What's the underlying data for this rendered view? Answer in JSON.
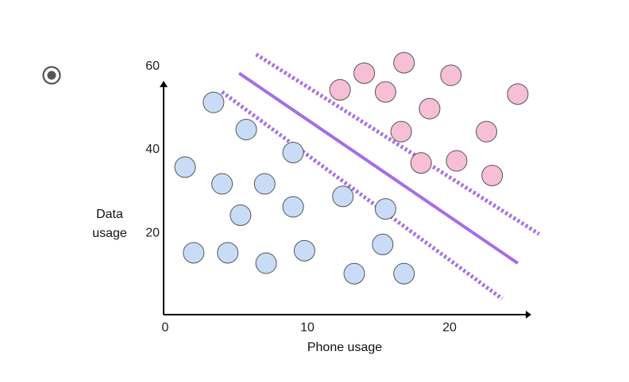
{
  "option": {
    "selected": true,
    "icon": "radio-selected-icon"
  },
  "colors": {
    "class_a_fill": "#c9dcf7",
    "class_b_fill": "#f6bfd6",
    "point_stroke": "#555555",
    "boundary": "#a66de6",
    "axis": "#000000"
  },
  "chart_data": {
    "type": "scatter",
    "xlabel": "Phone usage",
    "ylabel_lines": [
      "Data",
      "usage"
    ],
    "xticks": [
      0,
      10,
      20
    ],
    "yticks": [
      20,
      40,
      60
    ],
    "xlim": [
      0,
      25
    ],
    "ylim": [
      0,
      62
    ],
    "grid": false,
    "series": [
      {
        "class": "a",
        "points": [
          {
            "x": 3.4,
            "y": 51
          },
          {
            "x": 5.7,
            "y": 44.5
          },
          {
            "x": 9,
            "y": 39
          },
          {
            "x": 1.4,
            "y": 35.5
          },
          {
            "x": 4,
            "y": 31.5
          },
          {
            "x": 7,
            "y": 31.5
          },
          {
            "x": 9,
            "y": 26
          },
          {
            "x": 12.5,
            "y": 28.5
          },
          {
            "x": 15.5,
            "y": 25.5
          },
          {
            "x": 5.3,
            "y": 24
          },
          {
            "x": 2,
            "y": 15
          },
          {
            "x": 4.4,
            "y": 15
          },
          {
            "x": 7.1,
            "y": 12.5
          },
          {
            "x": 9.8,
            "y": 15.5
          },
          {
            "x": 15.3,
            "y": 17
          },
          {
            "x": 13.3,
            "y": 10
          },
          {
            "x": 16.8,
            "y": 10
          }
        ]
      },
      {
        "class": "b",
        "points": [
          {
            "x": 16.8,
            "y": 60.5
          },
          {
            "x": 14,
            "y": 58
          },
          {
            "x": 20.1,
            "y": 57.5
          },
          {
            "x": 12.3,
            "y": 54
          },
          {
            "x": 15.5,
            "y": 53.5
          },
          {
            "x": 24.8,
            "y": 53
          },
          {
            "x": 18.6,
            "y": 49.5
          },
          {
            "x": 16.6,
            "y": 44
          },
          {
            "x": 22.6,
            "y": 44
          },
          {
            "x": 18,
            "y": 36.5
          },
          {
            "x": 20.5,
            "y": 37
          },
          {
            "x": 23,
            "y": 33.5
          }
        ]
      }
    ],
    "lines": [
      {
        "style": "solid",
        "from": {
          "x": 5.2,
          "y": 58
        },
        "to": {
          "x": 24.8,
          "y": 12.5
        }
      },
      {
        "style": "dotted",
        "from": {
          "x": 4,
          "y": 53.5
        },
        "to": {
          "x": 23.7,
          "y": 4
        }
      },
      {
        "style": "dotted",
        "from": {
          "x": 6.4,
          "y": 62.5
        },
        "to": {
          "x": 26.3,
          "y": 19.5
        }
      }
    ]
  }
}
